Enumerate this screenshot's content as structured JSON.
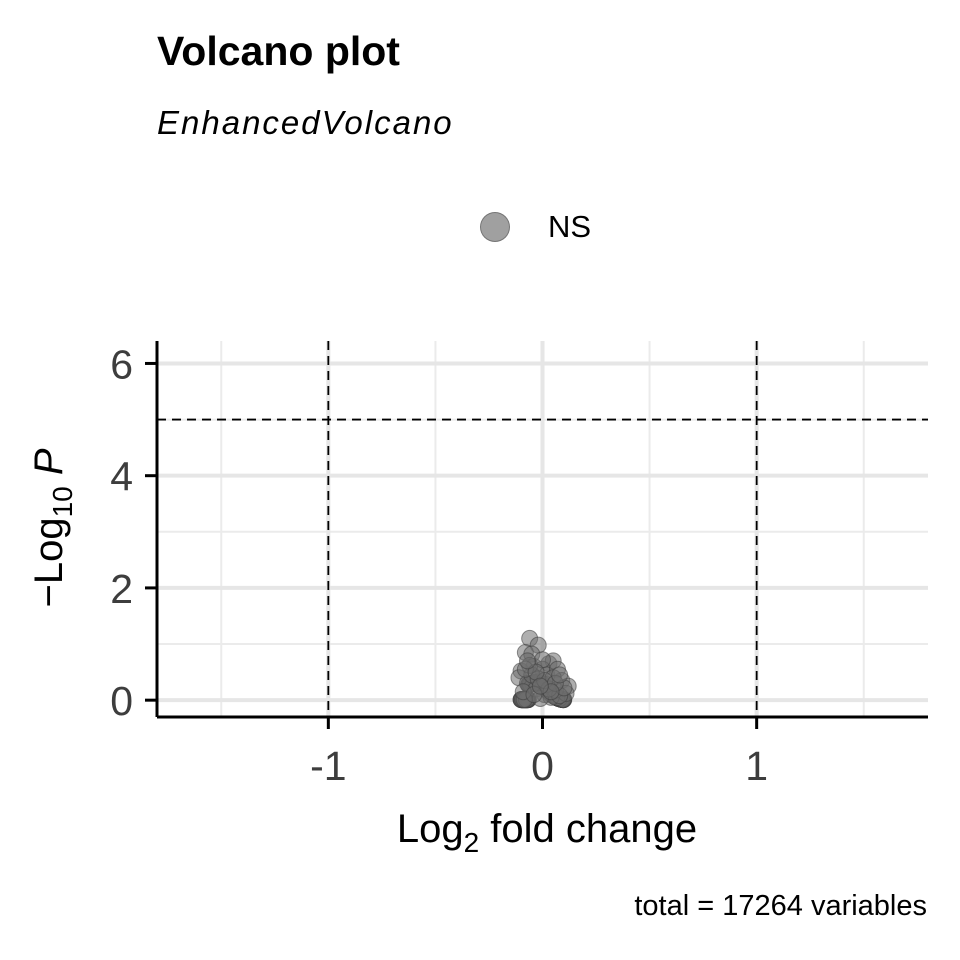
{
  "chart_data": {
    "type": "scatter",
    "title": "Volcano plot",
    "subtitle": "EnhancedVolcano",
    "xlabel": "Log2 fold change",
    "ylabel": "-Log10 P",
    "xlim": [
      -1.8,
      1.8
    ],
    "ylim": [
      -0.3,
      6.4
    ],
    "x_ticks": [
      -1,
      0,
      1
    ],
    "x_tick_labels": [
      "-1",
      "0",
      "1"
    ],
    "y_ticks": [
      0,
      2,
      4,
      6
    ],
    "y_tick_labels": [
      "0",
      "2",
      "4",
      "6"
    ],
    "grid": true,
    "legend_position": "top",
    "thresholds": {
      "fold_change": [
        -1,
        1
      ],
      "neg_log10_p": 5
    },
    "series": [
      {
        "name": "NS",
        "color": "#808080",
        "points": [
          [
            -0.06,
            1.1
          ],
          [
            -0.02,
            0.98
          ],
          [
            -0.08,
            0.85
          ],
          [
            -0.05,
            0.82
          ],
          [
            0.03,
            0.65
          ],
          [
            0.05,
            0.7
          ],
          [
            -0.1,
            0.52
          ],
          [
            -0.11,
            0.4
          ],
          [
            -0.04,
            0.6
          ],
          [
            0.0,
            0.55
          ],
          [
            0.02,
            0.45
          ],
          [
            0.07,
            0.55
          ],
          [
            0.09,
            0.35
          ],
          [
            0.12,
            0.25
          ],
          [
            0.11,
            0.12
          ],
          [
            -0.07,
            0.3
          ],
          [
            -0.03,
            0.2
          ],
          [
            0.01,
            0.1
          ],
          [
            0.04,
            0.05
          ],
          [
            -0.01,
            0.03
          ],
          [
            0.06,
            0.18
          ],
          [
            -0.09,
            0.15
          ],
          [
            0.08,
            0.08
          ],
          [
            -0.05,
            0.45
          ],
          [
            0.02,
            0.28
          ],
          [
            -0.02,
            0.38
          ],
          [
            0.05,
            0.4
          ],
          [
            -0.06,
            0.62
          ],
          [
            0.0,
            0.72
          ],
          [
            0.03,
            0.2
          ],
          [
            -0.04,
            0.1
          ],
          [
            0.1,
            0.22
          ],
          [
            -0.08,
            0.55
          ],
          [
            0.01,
            0.35
          ],
          [
            0.06,
            0.3
          ],
          [
            -0.03,
            0.5
          ],
          [
            0.04,
            0.15
          ],
          [
            -0.01,
            0.25
          ],
          [
            0.08,
            0.45
          ],
          [
            -0.07,
            0.7
          ]
        ]
      }
    ],
    "caption": "total = 17264 variables"
  }
}
